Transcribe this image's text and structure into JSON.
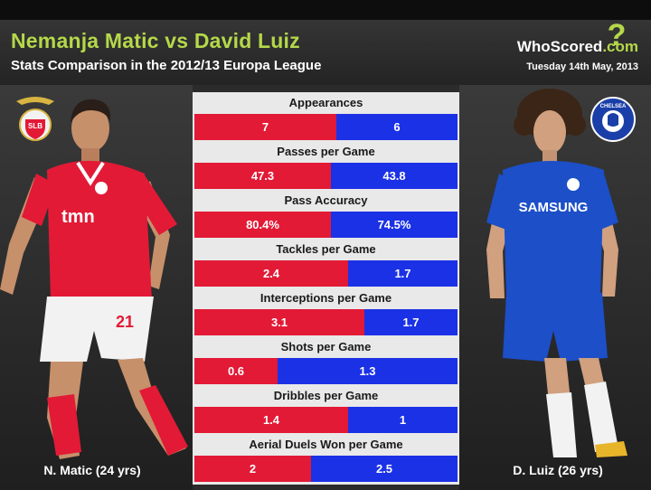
{
  "header": {
    "title": "Nemanja Matic vs David Luiz",
    "subtitle": "Stats Comparison in the 2012/13 Europa League",
    "brand": "WhoScored",
    "brand_suffix": ".com",
    "date": "Tuesday 14th May, 2013"
  },
  "players": {
    "left": {
      "label": "N. Matic (24 yrs)",
      "shirt_text": "tmn",
      "shirt_number": "21",
      "crest_text": "SLB"
    },
    "right": {
      "label": "D. Luiz (26 yrs)",
      "shirt_text": "SAMSUNG",
      "crest_text": "CHELSEA"
    }
  },
  "colors": {
    "matic": "#e21a36",
    "luiz": "#1b31e6",
    "accent": "#b5d84a"
  },
  "stats": [
    {
      "label": "Appearances",
      "matic": "7",
      "luiz": "6",
      "matic_value": 7,
      "luiz_value": 6
    },
    {
      "label": "Passes per Game",
      "matic": "47.3",
      "luiz": "43.8",
      "matic_value": 47.3,
      "luiz_value": 43.8
    },
    {
      "label": "Pass Accuracy",
      "matic": "80.4%",
      "luiz": "74.5%",
      "matic_value": 80.4,
      "luiz_value": 74.5
    },
    {
      "label": "Tackles per Game",
      "matic": "2.4",
      "luiz": "1.7",
      "matic_value": 2.4,
      "luiz_value": 1.7
    },
    {
      "label": "Interceptions per Game",
      "matic": "3.1",
      "luiz": "1.7",
      "matic_value": 3.1,
      "luiz_value": 1.7
    },
    {
      "label": "Shots per Game",
      "matic": "0.6",
      "luiz": "1.3",
      "matic_value": 0.6,
      "luiz_value": 1.3
    },
    {
      "label": "Dribbles per Game",
      "matic": "1.4",
      "luiz": "1",
      "matic_value": 1.4,
      "luiz_value": 1
    },
    {
      "label": "Aerial Duels Won per Game",
      "matic": "2",
      "luiz": "2.5",
      "matic_value": 2,
      "luiz_value": 2.5
    }
  ]
}
